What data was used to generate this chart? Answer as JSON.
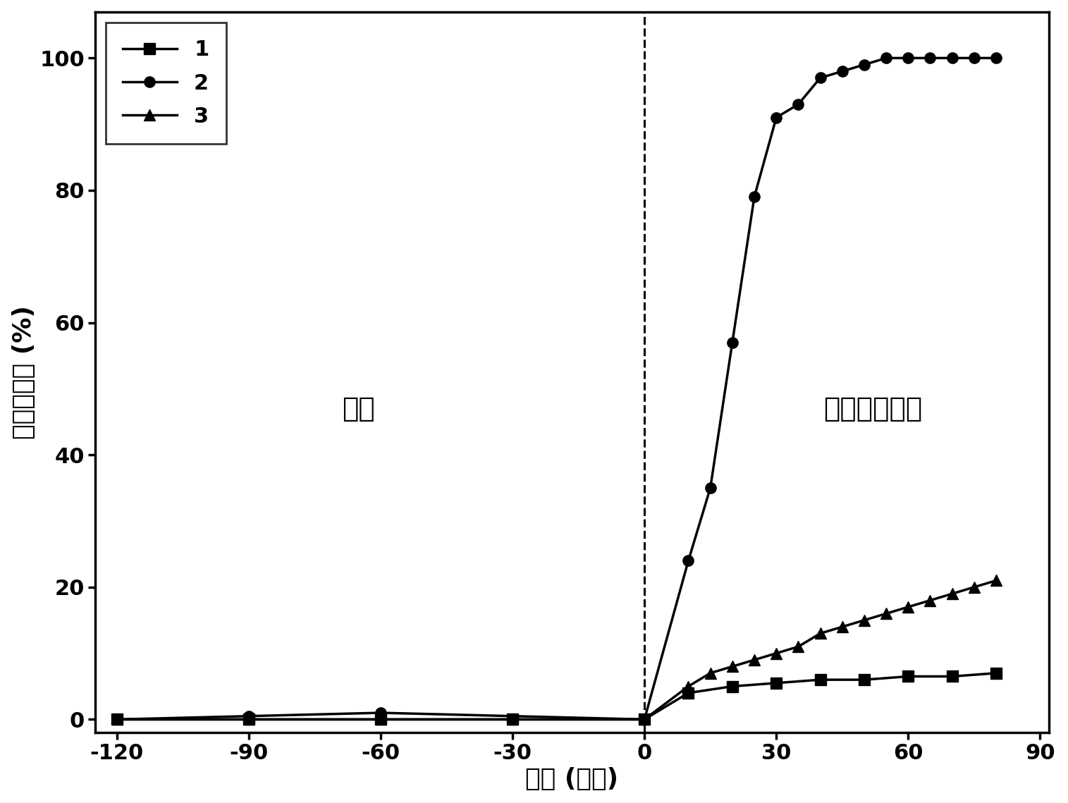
{
  "series1_label": "1",
  "series2_label": "2",
  "series3_label": "3",
  "series1_x": [
    -120,
    -90,
    -60,
    -30,
    0,
    10,
    20,
    30,
    40,
    50,
    60,
    70,
    80
  ],
  "series1_y": [
    0,
    0,
    0,
    0,
    0,
    4,
    5,
    5.5,
    6,
    6,
    6.5,
    6.5,
    7
  ],
  "series2_x": [
    -120,
    -90,
    -60,
    0,
    10,
    15,
    20,
    25,
    30,
    35,
    40,
    45,
    50,
    55,
    60,
    65,
    70,
    75,
    80
  ],
  "series2_y": [
    0,
    0.5,
    1,
    0,
    24,
    35,
    57,
    79,
    91,
    93,
    97,
    98,
    99,
    100,
    100,
    100,
    100,
    100,
    100
  ],
  "series3_x": [
    -120,
    -90,
    -60,
    -30,
    0,
    10,
    15,
    20,
    25,
    30,
    35,
    40,
    45,
    50,
    55,
    60,
    65,
    70,
    75,
    80
  ],
  "series3_y": [
    0,
    0,
    0,
    0,
    0,
    5,
    7,
    8,
    9,
    10,
    11,
    13,
    14,
    15,
    16,
    17,
    18,
    19,
    20,
    21
  ],
  "xlabel": "时间 (分钟)",
  "ylabel": "乙烯降解率 (%)",
  "text_dark": "暗态",
  "text_light": "模拟太阳光照",
  "vline_x": 0,
  "xlim": [
    -125,
    92
  ],
  "ylim": [
    -2,
    107
  ],
  "xticks": [
    -120,
    -90,
    -60,
    -30,
    0,
    30,
    60,
    90
  ],
  "yticks": [
    0,
    20,
    40,
    60,
    80,
    100
  ],
  "line_color": "#000000",
  "background_color": "#ffffff",
  "marker_size": 11,
  "line_width": 2.5,
  "font_size_label": 26,
  "font_size_tick": 22,
  "font_size_legend": 22,
  "font_size_annotation": 28
}
